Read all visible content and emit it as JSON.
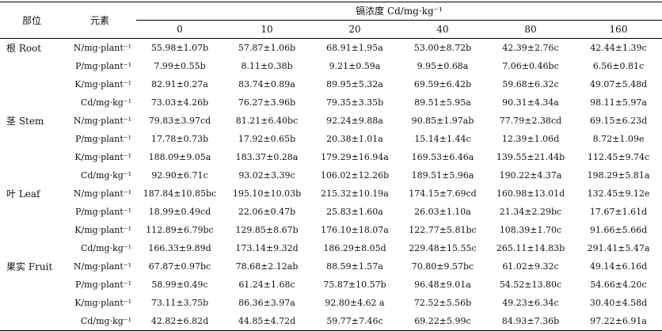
{
  "header": {
    "part_label": "部位",
    "element_label": "元素",
    "cd_group_label": "镉浓度 Cd/mg·kg⁻¹",
    "concentrations": [
      "0",
      "10",
      "20",
      "40",
      "80",
      "160"
    ]
  },
  "groups": [
    {
      "part": "根 Root",
      "rows": [
        {
          "element": "N/mg·plant⁻¹",
          "values": [
            "55.98±1.07b",
            "57.87±1.06b",
            "68.91±1.95a",
            "53.00±8.72b",
            "42.39±2.76c",
            "42.44±1.39c"
          ]
        },
        {
          "element": "P/mg·plant⁻¹",
          "values": [
            "7.99±0.55b",
            "8.11±0.38b",
            "9.21±0.59a",
            "9.95±0.68a",
            "7.06±0.46bc",
            "6.56±0.81c"
          ]
        },
        {
          "element": "K/mg·plant⁻¹",
          "values": [
            "82.91±0.27a",
            "83.74±0.89a",
            "89.95±5.32a",
            "69.59±6.42b",
            "59.68±6.32c",
            "49.07±5.48d"
          ]
        },
        {
          "element": "Cd/mg·kg⁻¹",
          "values": [
            "73.03±4.26b",
            "76.27±3.96b",
            "79.35±3.35b",
            "89.51±5.95a",
            "90.31±4.34a",
            "98.11±5.97a"
          ]
        }
      ]
    },
    {
      "part": "茎 Stem",
      "rows": [
        {
          "element": "N/mg·plant⁻¹",
          "values": [
            "79.83±3.97cd",
            "81.21±6.40bc",
            "92.24±9.88a",
            "90.85±1.97ab",
            "77.79±2.38cd",
            "69.15±6.23d"
          ]
        },
        {
          "element": "P/mg·plant⁻¹",
          "values": [
            "17.78±0.73b",
            "17.92±0.65b",
            "20.38±1.01a",
            "15.14±1.44c",
            "12.39±1.06d",
            "8.72±1.09e"
          ]
        },
        {
          "element": "K/mg·plant⁻¹",
          "values": [
            "188.09±9.05a",
            "183.37±0.28a",
            "179.29±16.94a",
            "169.53±6.46a",
            "139.55±21.44b",
            "112.45±9.74c"
          ]
        },
        {
          "element": "Cd/mg·kg⁻¹",
          "values": [
            "92.90±6.71c",
            "93.02±3.39c",
            "106.02±12.26b",
            "189.51±5.96a",
            "190.22±4.37a",
            "198.29±5.81a"
          ]
        }
      ]
    },
    {
      "part": "叶 Leaf",
      "rows": [
        {
          "element": "N/mg·plant⁻¹",
          "values": [
            "187.84±10.85bc",
            "195.10±10.03b",
            "215.32±10.19a",
            "174.15±7.69cd",
            "160.98±13.01d",
            "132.45±9.12e"
          ]
        },
        {
          "element": "P/mg·plant⁻¹",
          "values": [
            "18.99±0.49cd",
            "22.06±0.47b",
            "25.83±1.60a",
            "26.03±1.10a",
            "21.34±2.29bc",
            "17.67±1.61d"
          ]
        },
        {
          "element": "K/mg·plant⁻¹",
          "values": [
            "112.89±6.79bc",
            "129.85±8.67b",
            "176.10±18.07a",
            "122.77±5.81bc",
            "108.39±1.70c",
            "91.66±5.66d"
          ]
        },
        {
          "element": "Cd/mg·kg⁻¹",
          "values": [
            "166.33±9.89d",
            "173.14±9.32d",
            "186.29±8.05d",
            "229.48±15.55c",
            "265.11±14.83b",
            "291.41±5.47a"
          ]
        }
      ]
    },
    {
      "part": "果实 Fruit",
      "rows": [
        {
          "element": "N/mg·plant⁻¹",
          "values": [
            "67.87±0.97bc",
            "78.68±2.12ab",
            "88.59±1.57a",
            "70.80±9.57bc",
            "61.02±9.32c",
            "49.14±6.16d"
          ]
        },
        {
          "element": "P/mg·plant⁻¹",
          "values": [
            "58.99±0.49c",
            "61.24±1.68c",
            "75.87±10.57b",
            "96.48±9.01a",
            "54.52±13.80c",
            "54.66±4.20c"
          ]
        },
        {
          "element": "K/mg·plant⁻¹",
          "values": [
            "73.11±3.75b",
            "86.36±3.97a",
            "92.80±4.62 a",
            "72.52±5.56b",
            "49.23±6.34c",
            "30.40±4.58d"
          ]
        },
        {
          "element": "Cd/mg·kg⁻¹",
          "values": [
            "42.82±6.82d",
            "44.85±4.72d",
            "59.77±7.46c",
            "69.22±5.99c",
            "84.93±7.36b",
            "97.22±6.91a"
          ]
        }
      ]
    }
  ]
}
